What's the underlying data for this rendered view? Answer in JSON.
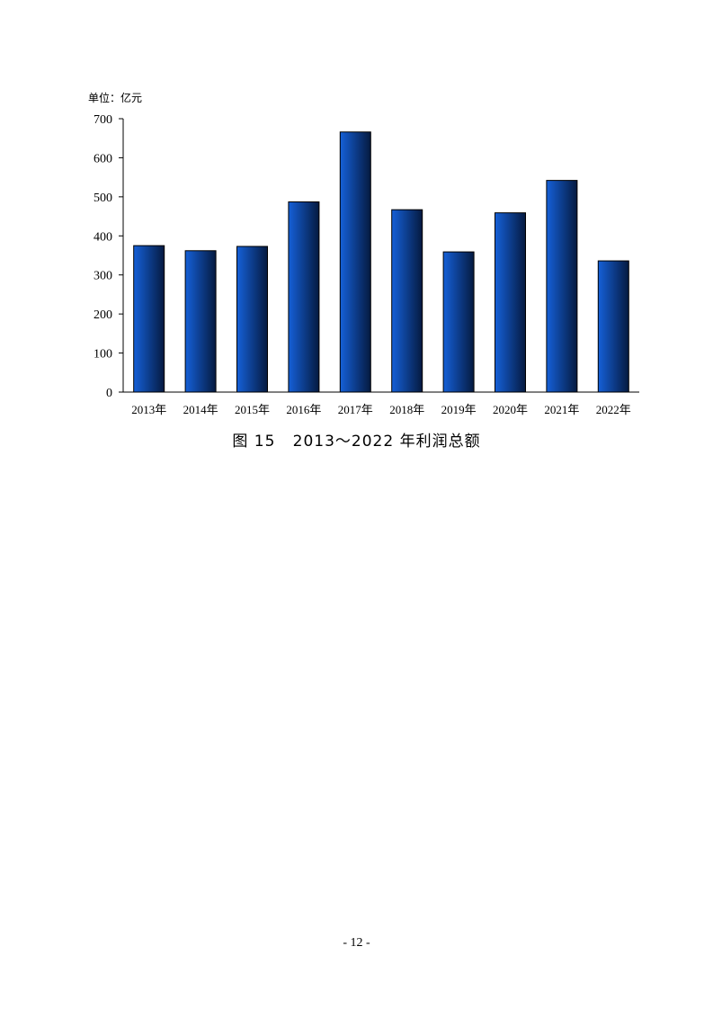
{
  "chart_data": {
    "type": "bar",
    "unit_label": "单位：亿元",
    "categories": [
      "2013年",
      "2014年",
      "2015年",
      "2016年",
      "2017年",
      "2018年",
      "2019年",
      "2020年",
      "2021年",
      "2022年"
    ],
    "values": [
      375,
      362,
      373,
      487,
      666,
      467,
      359,
      459,
      542,
      336
    ],
    "ylim": [
      0,
      700
    ],
    "yticks": [
      0,
      100,
      200,
      300,
      400,
      500,
      600,
      700
    ],
    "grid": false,
    "bar_color_light": "#1560d8",
    "bar_color_dark": "#051a40"
  },
  "caption": {
    "figure_no": "图 15",
    "title": "2013～2022 年利润总额"
  },
  "page": {
    "number": "- 12 -"
  }
}
